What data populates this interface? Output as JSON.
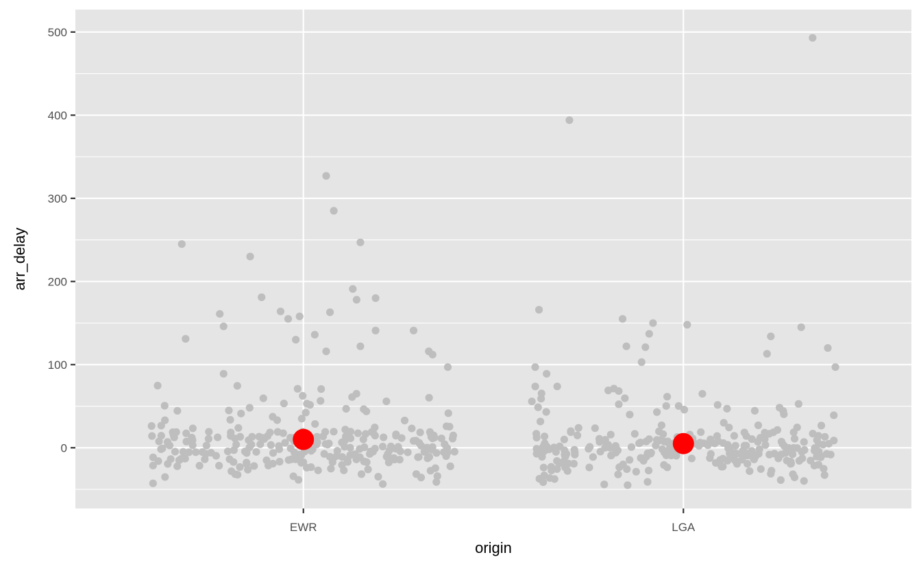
{
  "chart_data": {
    "type": "scatter",
    "subtype": "jitter-strip-with-means",
    "title": "",
    "xlabel": "origin",
    "ylabel": "arr_delay",
    "categories": [
      "EWR",
      "LGA"
    ],
    "ylim": [
      -73,
      527
    ],
    "y_ticks": [
      0,
      100,
      200,
      300,
      400,
      500
    ],
    "grid": true,
    "legend": "none",
    "colors": {
      "panel": "#e5e5e5",
      "grid": "#ffffff",
      "points": "#bebebe",
      "mean": "#ff0000"
    },
    "outlier_points": [
      {
        "category": "EWR",
        "jitter": -0.32,
        "y": 245
      },
      {
        "category": "EWR",
        "jitter": -0.31,
        "y": 131
      },
      {
        "category": "EWR",
        "jitter": -0.22,
        "y": 161
      },
      {
        "category": "EWR",
        "jitter": -0.21,
        "y": 146
      },
      {
        "category": "EWR",
        "jitter": -0.21,
        "y": 89
      },
      {
        "category": "EWR",
        "jitter": -0.14,
        "y": 230
      },
      {
        "category": "EWR",
        "jitter": -0.11,
        "y": 181
      },
      {
        "category": "EWR",
        "jitter": -0.06,
        "y": 164
      },
      {
        "category": "EWR",
        "jitter": -0.04,
        "y": 155
      },
      {
        "category": "EWR",
        "jitter": -0.02,
        "y": 130
      },
      {
        "category": "EWR",
        "jitter": -0.01,
        "y": 158
      },
      {
        "category": "EWR",
        "jitter": 0.03,
        "y": 136
      },
      {
        "category": "EWR",
        "jitter": 0.06,
        "y": 327
      },
      {
        "category": "EWR",
        "jitter": 0.08,
        "y": 285
      },
      {
        "category": "EWR",
        "jitter": 0.07,
        "y": 163
      },
      {
        "category": "EWR",
        "jitter": 0.15,
        "y": 247
      },
      {
        "category": "EWR",
        "jitter": 0.13,
        "y": 191
      },
      {
        "category": "EWR",
        "jitter": 0.14,
        "y": 178
      },
      {
        "category": "EWR",
        "jitter": 0.19,
        "y": 141
      },
      {
        "category": "EWR",
        "jitter": 0.19,
        "y": 180
      },
      {
        "category": "EWR",
        "jitter": 0.15,
        "y": 122
      },
      {
        "category": "EWR",
        "jitter": 0.29,
        "y": 141
      },
      {
        "category": "EWR",
        "jitter": 0.33,
        "y": 116
      },
      {
        "category": "EWR",
        "jitter": 0.34,
        "y": 112
      },
      {
        "category": "EWR",
        "jitter": 0.38,
        "y": 97
      },
      {
        "category": "EWR",
        "jitter": 0.06,
        "y": 116
      },
      {
        "category": "LGA",
        "jitter": -0.39,
        "y": 97
      },
      {
        "category": "LGA",
        "jitter": -0.38,
        "y": 166
      },
      {
        "category": "LGA",
        "jitter": -0.36,
        "y": 89
      },
      {
        "category": "LGA",
        "jitter": -0.3,
        "y": 394
      },
      {
        "category": "LGA",
        "jitter": -0.16,
        "y": 155
      },
      {
        "category": "LGA",
        "jitter": -0.15,
        "y": 122
      },
      {
        "category": "LGA",
        "jitter": -0.08,
        "y": 150
      },
      {
        "category": "LGA",
        "jitter": -0.09,
        "y": 137
      },
      {
        "category": "LGA",
        "jitter": -0.1,
        "y": 121
      },
      {
        "category": "LGA",
        "jitter": -0.11,
        "y": 103
      },
      {
        "category": "LGA",
        "jitter": 0.01,
        "y": 148
      },
      {
        "category": "LGA",
        "jitter": 0.23,
        "y": 134
      },
      {
        "category": "LGA",
        "jitter": 0.22,
        "y": 113
      },
      {
        "category": "LGA",
        "jitter": 0.31,
        "y": 145
      },
      {
        "category": "LGA",
        "jitter": 0.34,
        "y": 493
      },
      {
        "category": "LGA",
        "jitter": 0.38,
        "y": 120
      },
      {
        "category": "LGA",
        "jitter": 0.4,
        "y": 97
      }
    ],
    "bulk_cluster": {
      "per_category": 260,
      "y_range": [
        -45,
        75
      ],
      "jitter_width": 0.4
    },
    "means": [
      {
        "category": "EWR",
        "y": 10
      },
      {
        "category": "LGA",
        "y": 5
      }
    ]
  }
}
